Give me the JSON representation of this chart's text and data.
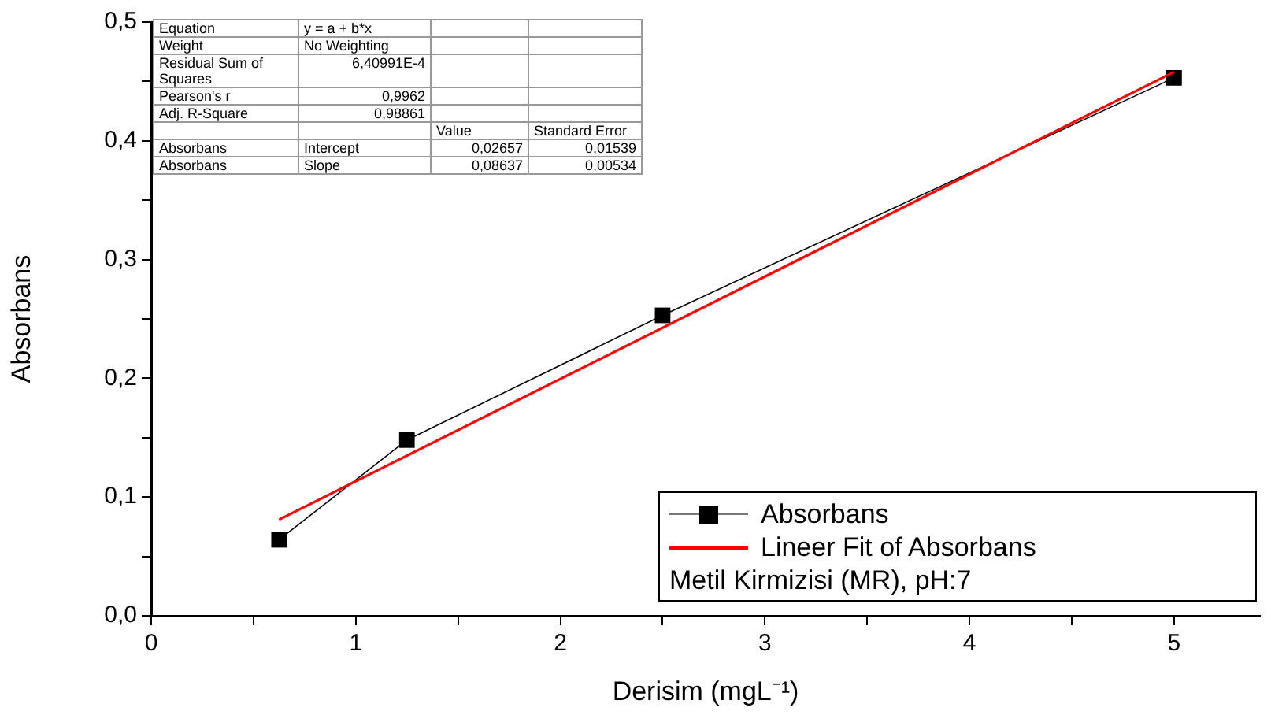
{
  "chart_data": {
    "type": "line",
    "xlabel": "Derisim (mgL⁻¹)",
    "ylabel": "Absorbans",
    "x": [
      0.625,
      1.25,
      2.5,
      5
    ],
    "series": [
      {
        "name": "Absorbans",
        "color": "#000000",
        "values": [
          0.064,
          0.148,
          0.253,
          0.453
        ],
        "marker": "square"
      },
      {
        "name": "Lineer Fit of Absorbans",
        "type": "line",
        "color": "#ff0000",
        "x": [
          0.625,
          5
        ],
        "values": [
          0.081,
          0.458
        ],
        "marker": "none"
      }
    ],
    "xlim": [
      0,
      5.42
    ],
    "ylim": [
      0,
      0.5
    ],
    "xticks": [
      0,
      {
        "value": 0.5,
        "label": null
      },
      1,
      {
        "value": 1.5,
        "label": null
      },
      2,
      {
        "value": 2.5,
        "label": null
      },
      3,
      {
        "value": 3.5,
        "label": null
      },
      4,
      {
        "value": 4.5,
        "label": null
      },
      5
    ],
    "yticks": [
      {
        "value": 0,
        "label": "0,0"
      },
      {
        "value": 0.05,
        "label": null
      },
      {
        "value": 0.1,
        "label": "0,1"
      },
      {
        "value": 0.15,
        "label": null
      },
      {
        "value": 0.2,
        "label": "0,2"
      },
      {
        "value": 0.25,
        "label": null
      },
      {
        "value": 0.3,
        "label": "0,3"
      },
      {
        "value": 0.35,
        "label": null
      },
      {
        "value": 0.4,
        "label": "0,4"
      },
      {
        "value": 0.45,
        "label": null
      },
      {
        "value": 0.5,
        "label": "0,5"
      }
    ],
    "legend": "bottom right",
    "annotations": [
      "Metil Kirmizisi (MR), pH:7",
      "Equation",
      "y = a + b*x",
      "Weight",
      "No Weighting",
      "Residual Sum of Squares",
      "6,40991E-4",
      "Pearson's r",
      "0,9962",
      "Adj. R-Square",
      "0,98861",
      "Value",
      "Standard Error",
      "Absorbans",
      "Intercept",
      "0,02657",
      "0,01539",
      "Absorbans",
      "Slope",
      "0,08637",
      "0,00534"
    ]
  }
}
